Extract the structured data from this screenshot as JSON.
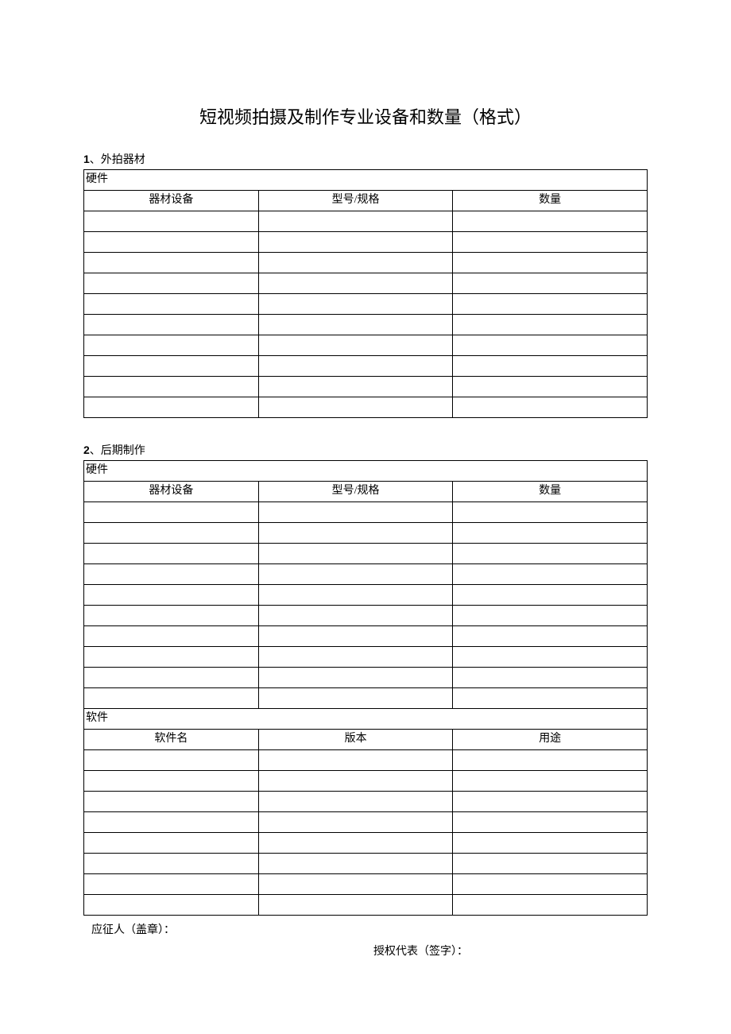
{
  "title": "短视频拍摄及制作专业设备和数量（格式）",
  "sections": [
    {
      "num": "1",
      "sep": "、",
      "name": "外拍器材",
      "groups": [
        {
          "label": "硬件",
          "columns": [
            "器材设备",
            "型号/规格",
            "数量"
          ],
          "rows": [
            [
              "",
              "",
              ""
            ],
            [
              "",
              "",
              ""
            ],
            [
              "",
              "",
              ""
            ],
            [
              "",
              "",
              ""
            ],
            [
              "",
              "",
              ""
            ],
            [
              "",
              "",
              ""
            ],
            [
              "",
              "",
              ""
            ],
            [
              "",
              "",
              ""
            ],
            [
              "",
              "",
              ""
            ],
            [
              "",
              "",
              ""
            ]
          ]
        }
      ]
    },
    {
      "num": "2",
      "sep": "、",
      "name": "后期制作",
      "groups": [
        {
          "label": "硬件",
          "columns": [
            "器材设备",
            "型号/规格",
            "数量"
          ],
          "rows": [
            [
              "",
              "",
              ""
            ],
            [
              "",
              "",
              ""
            ],
            [
              "",
              "",
              ""
            ],
            [
              "",
              "",
              ""
            ],
            [
              "",
              "",
              ""
            ],
            [
              "",
              "",
              ""
            ],
            [
              "",
              "",
              ""
            ],
            [
              "",
              "",
              ""
            ],
            [
              "",
              "",
              ""
            ],
            [
              "",
              "",
              ""
            ]
          ]
        },
        {
          "label": "软件",
          "columns": [
            "软件名",
            "版本",
            "用途"
          ],
          "rows": [
            [
              "",
              "",
              ""
            ],
            [
              "",
              "",
              ""
            ],
            [
              "",
              "",
              ""
            ],
            [
              "",
              "",
              ""
            ],
            [
              "",
              "",
              ""
            ],
            [
              "",
              "",
              ""
            ],
            [
              "",
              "",
              ""
            ],
            [
              "",
              "",
              ""
            ]
          ]
        }
      ]
    }
  ],
  "signature": {
    "applicant": "应征人（盖章）：",
    "rep": "授权代表（签字）："
  }
}
